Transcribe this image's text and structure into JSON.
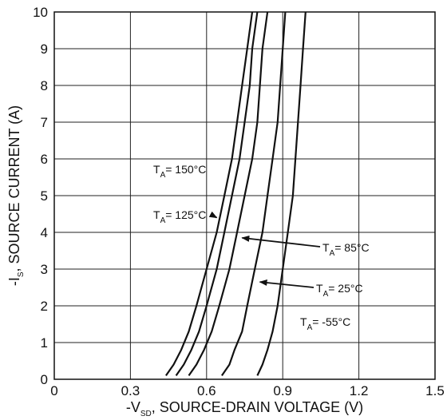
{
  "chart_data": {
    "type": "line",
    "title": "",
    "xlabel": {
      "prefix": "-V",
      "sub": "SD",
      "rest": ", SOURCE-DRAIN VOLTAGE (V)"
    },
    "ylabel": {
      "prefix": "-I",
      "sub": "S",
      "rest": ", SOURCE CURRENT (A)"
    },
    "xlim": [
      0,
      1.5
    ],
    "ylim": [
      0,
      10
    ],
    "x_ticks": [
      "0",
      "0.3",
      "0.6",
      "0.9",
      "1.2",
      "1.5"
    ],
    "y_ticks": [
      "0",
      "1",
      "2",
      "3",
      "4",
      "5",
      "6",
      "7",
      "8",
      "9",
      "10"
    ],
    "grid": true,
    "series": [
      {
        "name": "150°C",
        "points": [
          [
            0.44,
            0.1
          ],
          [
            0.47,
            0.4
          ],
          [
            0.5,
            0.8
          ],
          [
            0.53,
            1.3
          ],
          [
            0.56,
            2.0
          ],
          [
            0.6,
            3.0
          ],
          [
            0.64,
            4.0
          ],
          [
            0.67,
            5.0
          ],
          [
            0.7,
            6.0
          ],
          [
            0.72,
            7.0
          ],
          [
            0.74,
            8.0
          ],
          [
            0.76,
            9.0
          ],
          [
            0.78,
            10.0
          ]
        ]
      },
      {
        "name": "125°C",
        "points": [
          [
            0.48,
            0.1
          ],
          [
            0.51,
            0.4
          ],
          [
            0.54,
            0.8
          ],
          [
            0.57,
            1.3
          ],
          [
            0.6,
            2.0
          ],
          [
            0.64,
            3.0
          ],
          [
            0.67,
            4.0
          ],
          [
            0.7,
            5.0
          ],
          [
            0.73,
            6.0
          ],
          [
            0.75,
            7.0
          ],
          [
            0.77,
            8.0
          ],
          [
            0.78,
            9.0
          ],
          [
            0.8,
            10.0
          ]
        ]
      },
      {
        "name": "85°C",
        "points": [
          [
            0.53,
            0.1
          ],
          [
            0.56,
            0.4
          ],
          [
            0.59,
            0.8
          ],
          [
            0.62,
            1.3
          ],
          [
            0.65,
            2.0
          ],
          [
            0.69,
            3.0
          ],
          [
            0.72,
            4.0
          ],
          [
            0.75,
            5.0
          ],
          [
            0.78,
            6.0
          ],
          [
            0.8,
            7.0
          ],
          [
            0.81,
            8.0
          ],
          [
            0.82,
            9.0
          ],
          [
            0.84,
            10.0
          ]
        ]
      },
      {
        "name": "25°C",
        "points": [
          [
            0.66,
            0.1
          ],
          [
            0.69,
            0.4
          ],
          [
            0.71,
            0.8
          ],
          [
            0.74,
            1.3
          ],
          [
            0.76,
            2.0
          ],
          [
            0.79,
            3.0
          ],
          [
            0.82,
            4.0
          ],
          [
            0.84,
            5.0
          ],
          [
            0.86,
            6.0
          ],
          [
            0.88,
            7.0
          ],
          [
            0.89,
            8.0
          ],
          [
            0.9,
            9.0
          ],
          [
            0.91,
            10.0
          ]
        ]
      },
      {
        "name": "-55°C",
        "points": [
          [
            0.8,
            0.1
          ],
          [
            0.82,
            0.4
          ],
          [
            0.84,
            0.8
          ],
          [
            0.86,
            1.3
          ],
          [
            0.88,
            2.0
          ],
          [
            0.9,
            3.0
          ],
          [
            0.92,
            4.0
          ],
          [
            0.94,
            5.0
          ],
          [
            0.95,
            6.0
          ],
          [
            0.96,
            7.0
          ],
          [
            0.97,
            8.0
          ],
          [
            0.98,
            9.0
          ],
          [
            0.99,
            10.0
          ]
        ]
      }
    ],
    "annotations": [
      {
        "prefix": "T",
        "sub": "A",
        "text": "= 150°C",
        "series": "150°C",
        "arrow": false
      },
      {
        "prefix": "T",
        "sub": "A",
        "text": "= 125°C",
        "series": "125°C",
        "arrow": true,
        "target": [
          0.64,
          4.4
        ]
      },
      {
        "prefix": "T",
        "sub": "A",
        "text": "= 85°C",
        "series": "85°C",
        "arrow": true,
        "target": [
          0.74,
          3.85
        ]
      },
      {
        "prefix": "T",
        "sub": "A",
        "text": "= 25°C",
        "series": "25°C",
        "arrow": true,
        "target": [
          0.81,
          2.65
        ]
      },
      {
        "prefix": "T",
        "sub": "A",
        "text": "= -55°C",
        "series": "-55°C",
        "arrow": false
      }
    ]
  }
}
